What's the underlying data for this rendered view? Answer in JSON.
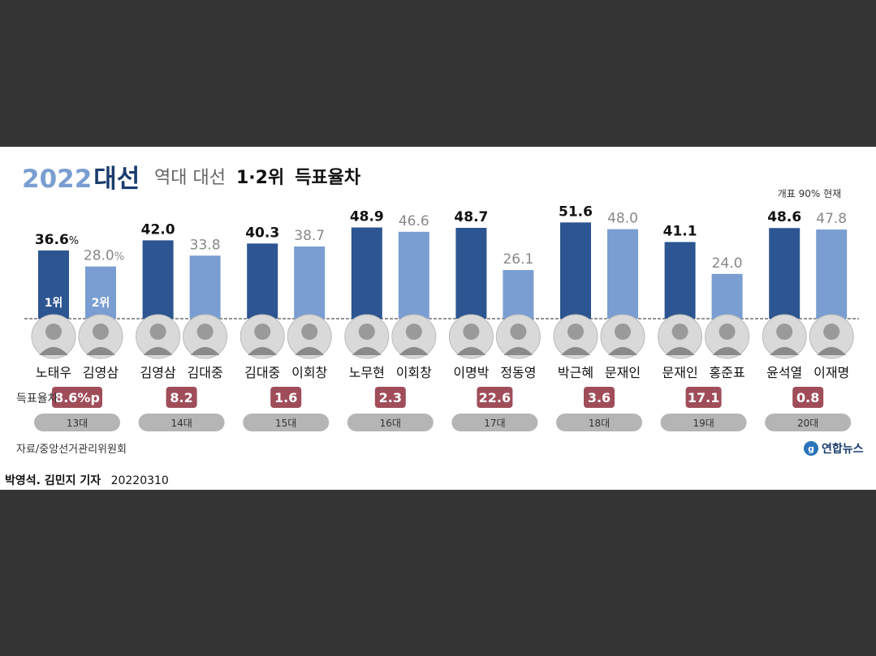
{
  "header": {
    "year": "2022",
    "topic": "대선",
    "subtitle_prefix": "역대 대선",
    "subtitle_bold": "1·2위",
    "subtitle_suffix": "득표율차",
    "note": "개표 90% 현재"
  },
  "footer": {
    "source": "자료/중앙선거관리위원회",
    "brand": "연합뉴스",
    "reporter": "박영석. 김민지 기자",
    "date": "20220310"
  },
  "labels": {
    "gap_label": "득표율차",
    "rank1": "1위",
    "rank2": "2위",
    "percent_sign": "%",
    "percent_point": "%p"
  },
  "colors": {
    "first": "#2c5591",
    "second": "#7a9ed1",
    "gap_badge": "#a04d5a",
    "election_pill": "#b5b5b5",
    "title_dark": "#1a3c6e",
    "title_light": "#7a9ed1"
  },
  "chart_data": {
    "type": "bar",
    "title": "2022대선 역대 대선 1·2위 득표율차",
    "ylim": [
      0,
      55
    ],
    "categories": [
      "13대",
      "14대",
      "15대",
      "16대",
      "17대",
      "18대",
      "19대",
      "20대"
    ],
    "series": [
      {
        "name": "1위",
        "values": [
          36.6,
          42.0,
          40.3,
          48.9,
          48.7,
          51.6,
          41.1,
          48.6
        ],
        "value_labels": [
          "36.6",
          "42.0",
          "40.3",
          "48.9",
          "48.7",
          "51.6",
          "41.1",
          "48.6"
        ],
        "candidates": [
          "노태우",
          "김영삼",
          "김대중",
          "노무현",
          "이명박",
          "박근혜",
          "문재인",
          "윤석열"
        ]
      },
      {
        "name": "2위",
        "values": [
          28.0,
          33.8,
          38.7,
          46.6,
          26.1,
          48.0,
          24.0,
          47.8
        ],
        "value_labels": [
          "28.0",
          "33.8",
          "38.7",
          "46.6",
          "26.1",
          "48.0",
          "24.0",
          "47.8"
        ],
        "candidates": [
          "김영삼",
          "김대중",
          "이회창",
          "이회창",
          "정동영",
          "문재인",
          "홍준표",
          "이재명"
        ]
      }
    ],
    "gap": [
      8.6,
      8.2,
      1.6,
      2.3,
      22.6,
      3.6,
      17.1,
      0.8
    ],
    "gap_labels": [
      "8.6",
      "8.2",
      "1.6",
      "2.3",
      "22.6",
      "3.6",
      "17.1",
      "0.8"
    ],
    "grid": false,
    "legend": "none"
  }
}
